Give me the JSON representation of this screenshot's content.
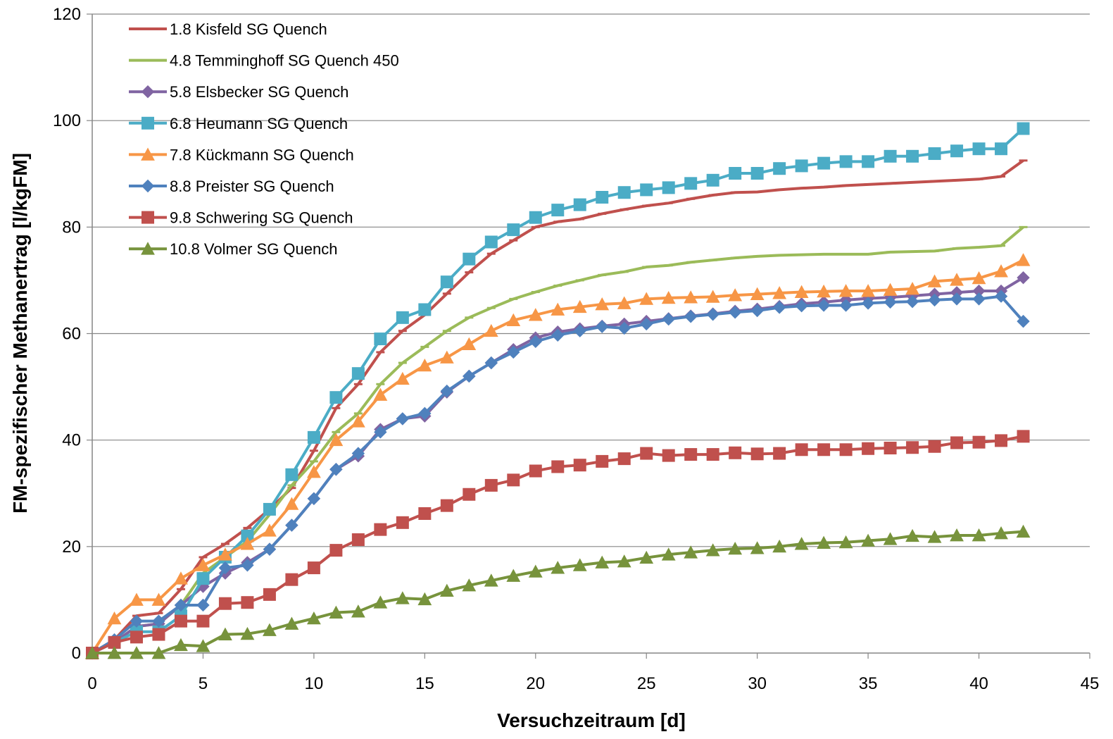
{
  "chart_data": {
    "type": "line",
    "title": "",
    "xlabel": "Versuchzeitraum [d]",
    "ylabel": "FM-spezifischer Methanertrag [l/kgFM]",
    "xlim": [
      0,
      45
    ],
    "ylim": [
      0,
      120
    ],
    "x_ticks": [
      0,
      5,
      10,
      15,
      20,
      25,
      30,
      35,
      40,
      45
    ],
    "y_ticks": [
      0,
      20,
      40,
      60,
      80,
      100,
      120
    ],
    "grid": "horizontal",
    "legend_position": "top-left",
    "x": [
      0,
      1,
      2,
      3,
      4,
      5,
      6,
      7,
      8,
      9,
      10,
      11,
      12,
      13,
      14,
      15,
      16,
      17,
      18,
      19,
      20,
      21,
      22,
      23,
      24,
      25,
      26,
      27,
      28,
      29,
      30,
      31,
      32,
      33,
      34,
      35,
      36,
      37,
      38,
      39,
      40,
      41,
      42
    ],
    "series": [
      {
        "name": "1.8 Kisfeld SG Quench",
        "color": "#C0504D",
        "marker": "dash",
        "values": [
          0,
          2.5,
          7,
          7.5,
          12,
          18,
          20.5,
          23.5,
          27,
          31,
          38,
          46,
          50.5,
          56.5,
          60.5,
          63.5,
          67.5,
          71.5,
          75,
          77.5,
          80,
          81,
          81.5,
          82.5,
          83.3,
          84,
          84.5,
          85.3,
          86,
          86.5,
          86.6,
          87,
          87.3,
          87.5,
          87.8,
          88,
          88.2,
          88.4,
          88.6,
          88.8,
          89,
          89.5,
          92.5
        ]
      },
      {
        "name": "4.8 Temminghoff SG Quench 450",
        "color": "#9BBB59",
        "marker": "dash",
        "values": [
          0,
          2,
          5,
          5.5,
          9,
          15,
          18,
          21,
          26,
          31.5,
          36,
          41.5,
          45,
          50.5,
          54.5,
          57.5,
          60.5,
          63,
          64.8,
          66.5,
          67.8,
          69,
          70,
          71,
          71.6,
          72.5,
          72.8,
          73.4,
          73.8,
          74.2,
          74.5,
          74.7,
          74.8,
          74.9,
          74.9,
          74.9,
          75.3,
          75.4,
          75.5,
          76,
          76.2,
          76.5,
          80
        ]
      },
      {
        "name": "5.8 Elsbecker SG Quench",
        "color": "#8064A2",
        "marker": "diamond",
        "values": [
          0,
          2,
          5,
          5.5,
          9,
          12.5,
          15,
          17,
          19.5,
          24,
          29,
          34.5,
          37,
          42,
          44,
          44.5,
          49,
          52,
          54.5,
          57,
          59.2,
          60.3,
          60.9,
          61.4,
          61.8,
          62.3,
          62.8,
          63.3,
          63.7,
          64.2,
          64.6,
          65.1,
          65.6,
          65.9,
          66.3,
          66.6,
          66.8,
          67.1,
          67.4,
          67.7,
          68,
          68,
          70.5
        ]
      },
      {
        "name": "6.8 Heumann SG Quench",
        "color": "#4BACC6",
        "marker": "square",
        "values": [
          0,
          2,
          4,
          4,
          7,
          14,
          18,
          22,
          27,
          33.5,
          40.5,
          48,
          52.5,
          59,
          63,
          64.5,
          69.7,
          74,
          77.2,
          79.5,
          81.8,
          83.2,
          84.2,
          85.6,
          86.5,
          87,
          87.4,
          88.2,
          88.8,
          90.1,
          90.1,
          91,
          91.5,
          92,
          92.3,
          92.3,
          93.3,
          93.3,
          93.8,
          94.3,
          94.7,
          94.7,
          98.5
        ]
      },
      {
        "name": "7.8 Kückmann SG Quench",
        "color": "#F79646",
        "marker": "triangle",
        "values": [
          0,
          6.5,
          10,
          10,
          14,
          16.5,
          18.5,
          20.5,
          23,
          28,
          34,
          40,
          43.5,
          48.5,
          51.5,
          54,
          55.5,
          58,
          60.5,
          62.5,
          63.5,
          64.5,
          65,
          65.5,
          65.7,
          66.5,
          66.7,
          66.8,
          66.9,
          67.2,
          67.4,
          67.6,
          67.8,
          67.9,
          68,
          68,
          68.2,
          68.4,
          69.8,
          70.1,
          70.4,
          71.7,
          73.8
        ]
      },
      {
        "name": "8.8 Preister SG Quench",
        "color": "#4F81BD",
        "marker": "diamond",
        "values": [
          0,
          2.5,
          6,
          6,
          9,
          9,
          16,
          16.5,
          19.5,
          24,
          29,
          34.5,
          37.5,
          41.5,
          44,
          45,
          49.2,
          52,
          54.5,
          56.5,
          58.5,
          59.7,
          60.5,
          61.3,
          61,
          61.8,
          62.7,
          63.2,
          63.6,
          64,
          64.3,
          64.9,
          65.2,
          65.3,
          65.3,
          65.7,
          65.9,
          66,
          66.3,
          66.5,
          66.5,
          67,
          62.3
        ]
      },
      {
        "name": "9.8 Schwering SG Quench",
        "color": "#C0504D",
        "marker": "square",
        "values": [
          0,
          2,
          3,
          3.5,
          6,
          6,
          9.3,
          9.5,
          11,
          13.8,
          16,
          19.3,
          21.3,
          23.2,
          24.5,
          26.2,
          27.7,
          29.8,
          31.5,
          32.5,
          34.2,
          35,
          35.3,
          36,
          36.5,
          37.5,
          37.1,
          37.3,
          37.3,
          37.6,
          37.4,
          37.5,
          38.2,
          38.2,
          38.2,
          38.4,
          38.5,
          38.6,
          38.8,
          39.5,
          39.6,
          39.9,
          40.7
        ]
      },
      {
        "name": "10.8 Volmer SG Quench",
        "color": "#77933C",
        "marker": "triangle",
        "values": [
          0,
          0,
          0,
          0,
          1.5,
          1.3,
          3.5,
          3.6,
          4.3,
          5.5,
          6.5,
          7.6,
          7.8,
          9.5,
          10.3,
          10.1,
          11.7,
          12.7,
          13.6,
          14.5,
          15.3,
          16,
          16.5,
          17,
          17.2,
          17.9,
          18.5,
          18.9,
          19.3,
          19.6,
          19.7,
          20,
          20.5,
          20.7,
          20.8,
          21.1,
          21.4,
          22,
          21.8,
          22.1,
          22.1,
          22.5,
          22.8
        ]
      }
    ]
  }
}
